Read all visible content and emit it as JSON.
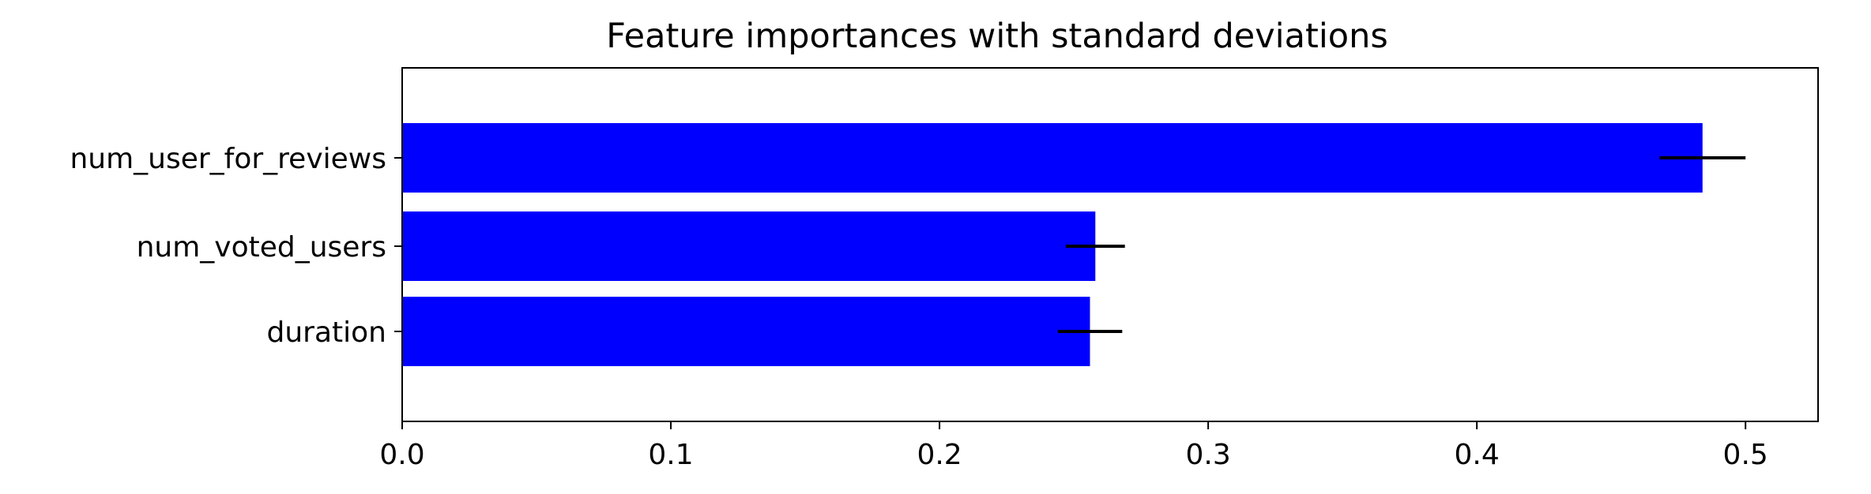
{
  "chart_data": {
    "type": "bar",
    "orientation": "horizontal",
    "title": "Feature importances with standard deviations",
    "xlabel": "",
    "ylabel": "",
    "categories": [
      "duration",
      "num_voted_users",
      "num_user_for_reviews"
    ],
    "values": [
      0.256,
      0.258,
      0.484
    ],
    "errors": [
      0.012,
      0.011,
      0.016
    ],
    "xlim": [
      0,
      0.527
    ],
    "xticks": [
      0.0,
      0.1,
      0.2,
      0.3,
      0.4,
      0.5
    ],
    "xtick_labels": [
      "0.0",
      "0.1",
      "0.2",
      "0.3",
      "0.4",
      "0.5"
    ],
    "grid": false,
    "legend": "none",
    "colors": {
      "bar": "#0000ff",
      "error_bar": "#000000",
      "axes": "#000000"
    }
  }
}
